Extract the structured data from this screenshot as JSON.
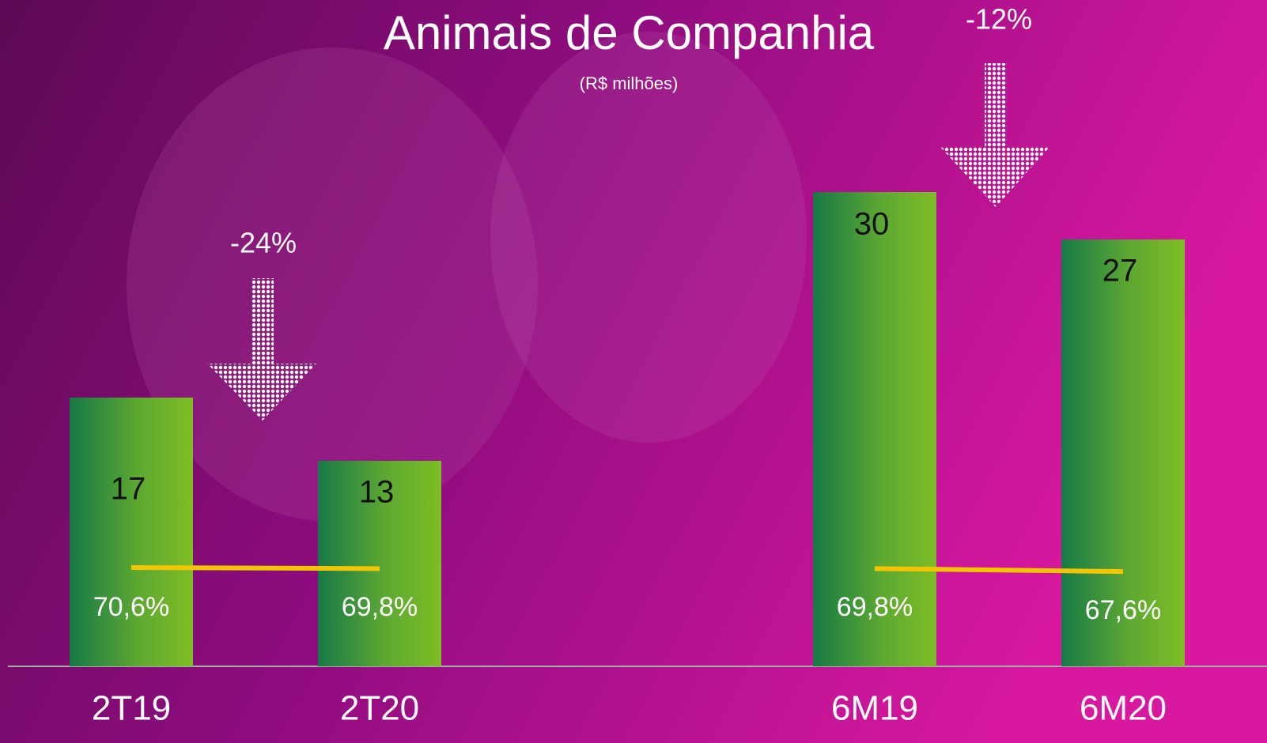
{
  "chart_data": {
    "type": "bar",
    "title": "Animais de Companhia",
    "subtitle": "(R$ milhões)",
    "categories": [
      "2T19",
      "2T20",
      "6M19",
      "6M20"
    ],
    "series": [
      {
        "values": [
          17,
          13,
          30,
          27
        ]
      },
      {
        "type": "line",
        "color": "#f2c500",
        "values": [
          70.6,
          69.8,
          69.8,
          67.6
        ],
        "value_labels": [
          "70,6%",
          "69,8%",
          "69,8%",
          "67,6%"
        ]
      }
    ],
    "annotations": [
      "-24%",
      "-12%"
    ]
  }
}
